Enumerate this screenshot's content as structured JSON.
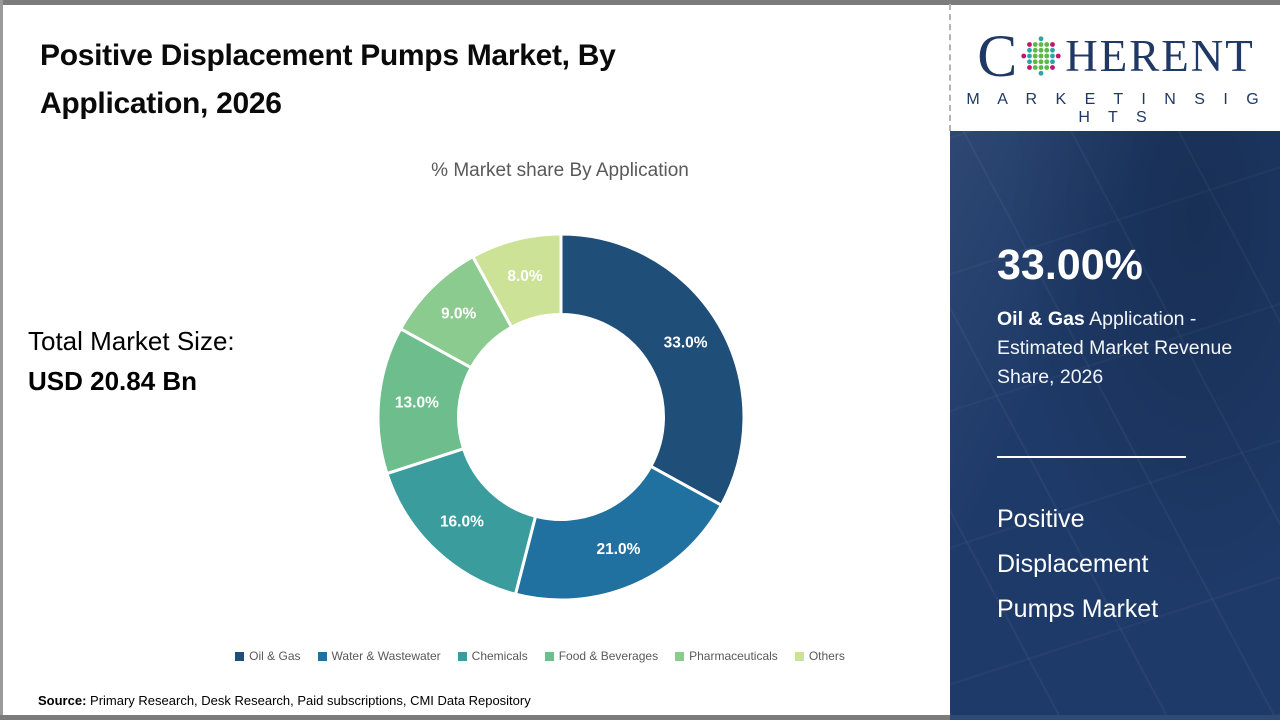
{
  "header": {
    "title": "Positive Displacement Pumps Market, By Application, 2026",
    "title_lines": [
      "Positive Displacement Pumps Market, By",
      "Application, 2026"
    ]
  },
  "logo": {
    "prefix": "C",
    "suffix": "HERENT",
    "tagline": "M A R K E T   I N S I G H T S",
    "navy": "#1F3864",
    "globe_colors": {
      "teal": "#2AA7A4",
      "green": "#5CB947",
      "magenta": "#C2156B"
    }
  },
  "main": {
    "total_label": "Total Market Size:",
    "total_value": "USD 20.84 Bn",
    "source_label": "Source:",
    "source_text": " Primary Research, Desk Research, Paid subscriptions, CMI Data Repository"
  },
  "chart_data": {
    "type": "pie",
    "subtype": "donut",
    "title": "% Market share By Application",
    "categories": [
      "Oil & Gas",
      "Water & Wastewater",
      "Chemicals",
      "Food & Beverages",
      "Pharmaceuticals",
      "Others"
    ],
    "values": [
      33.0,
      21.0,
      16.0,
      13.0,
      9.0,
      8.0
    ],
    "data_labels": [
      "33.0%",
      "21.0%",
      "16.0%",
      "13.0%",
      "9.0%",
      "8.0%"
    ],
    "colors": [
      "#1F4E79",
      "#20719F",
      "#3A9C9D",
      "#6DBE8C",
      "#8CCB8F",
      "#CCE296"
    ],
    "start_angle_deg": -90,
    "clockwise": true,
    "inner_radius_ratio": 0.56,
    "slice_border_color": "#FFFFFF",
    "legend_position": "bottom"
  },
  "sidebar": {
    "stat_value": "33.00%",
    "stat_desc_bold": "Oil & Gas",
    "stat_desc_rest": " Application - Estimated Market Revenue Share, 2026",
    "market_name": "Positive Displacement Pumps Market",
    "background": "#1E3A68"
  }
}
